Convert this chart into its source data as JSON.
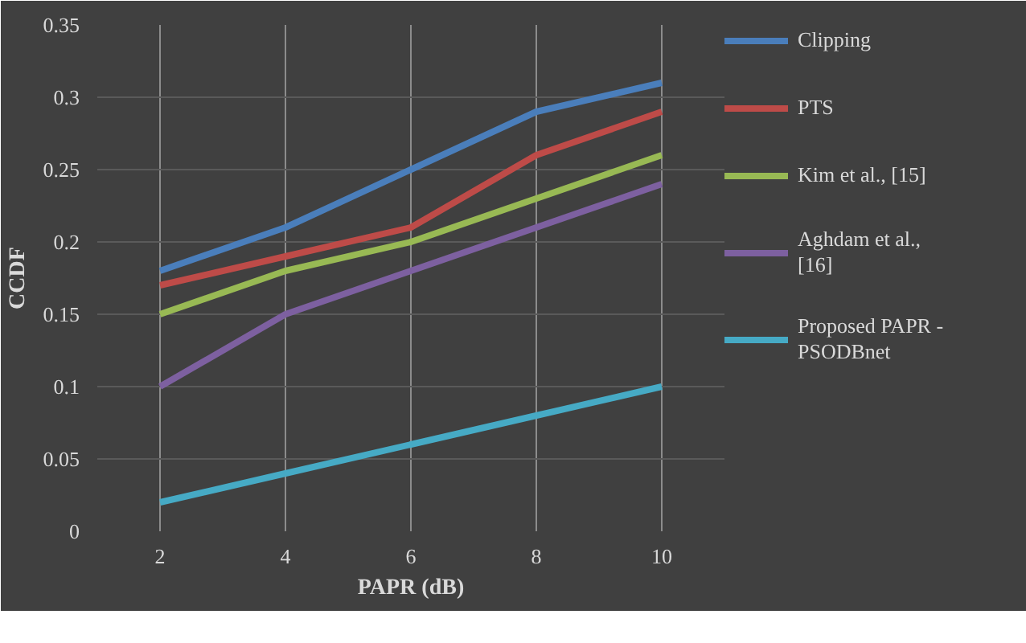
{
  "chart_data": {
    "type": "line",
    "xlabel": "PAPR (dB)",
    "ylabel": "CCDF",
    "x": [
      2,
      4,
      6,
      8,
      10
    ],
    "xlim": [
      1,
      11
    ],
    "xticks": [
      2,
      4,
      6,
      8,
      10
    ],
    "ylim": [
      0,
      0.35
    ],
    "yticks": [
      0,
      0.05,
      0.1,
      0.15,
      0.2,
      0.25,
      0.3,
      0.35
    ],
    "grid": true,
    "legend": "right",
    "marker": "none",
    "line_style": "solid",
    "series": [
      {
        "name": "Clipping",
        "color": "#4a7ebb",
        "values": [
          0.18,
          0.21,
          0.25,
          0.29,
          0.31
        ]
      },
      {
        "name": "PTS",
        "color": "#be4b48",
        "values": [
          0.17,
          0.19,
          0.21,
          0.26,
          0.29
        ]
      },
      {
        "name": "Kim et al., [15]",
        "color": "#98b954",
        "values": [
          0.15,
          0.18,
          0.2,
          0.23,
          0.26
        ]
      },
      {
        "name": "Aghdam et al., [16]",
        "color": "#7d60a0",
        "values": [
          0.1,
          0.15,
          0.18,
          0.21,
          0.24
        ]
      },
      {
        "name": "Proposed PAPR - PSODBnet",
        "color": "#46aac5",
        "values": [
          0.02,
          0.04,
          0.06,
          0.08,
          0.1
        ]
      }
    ]
  }
}
